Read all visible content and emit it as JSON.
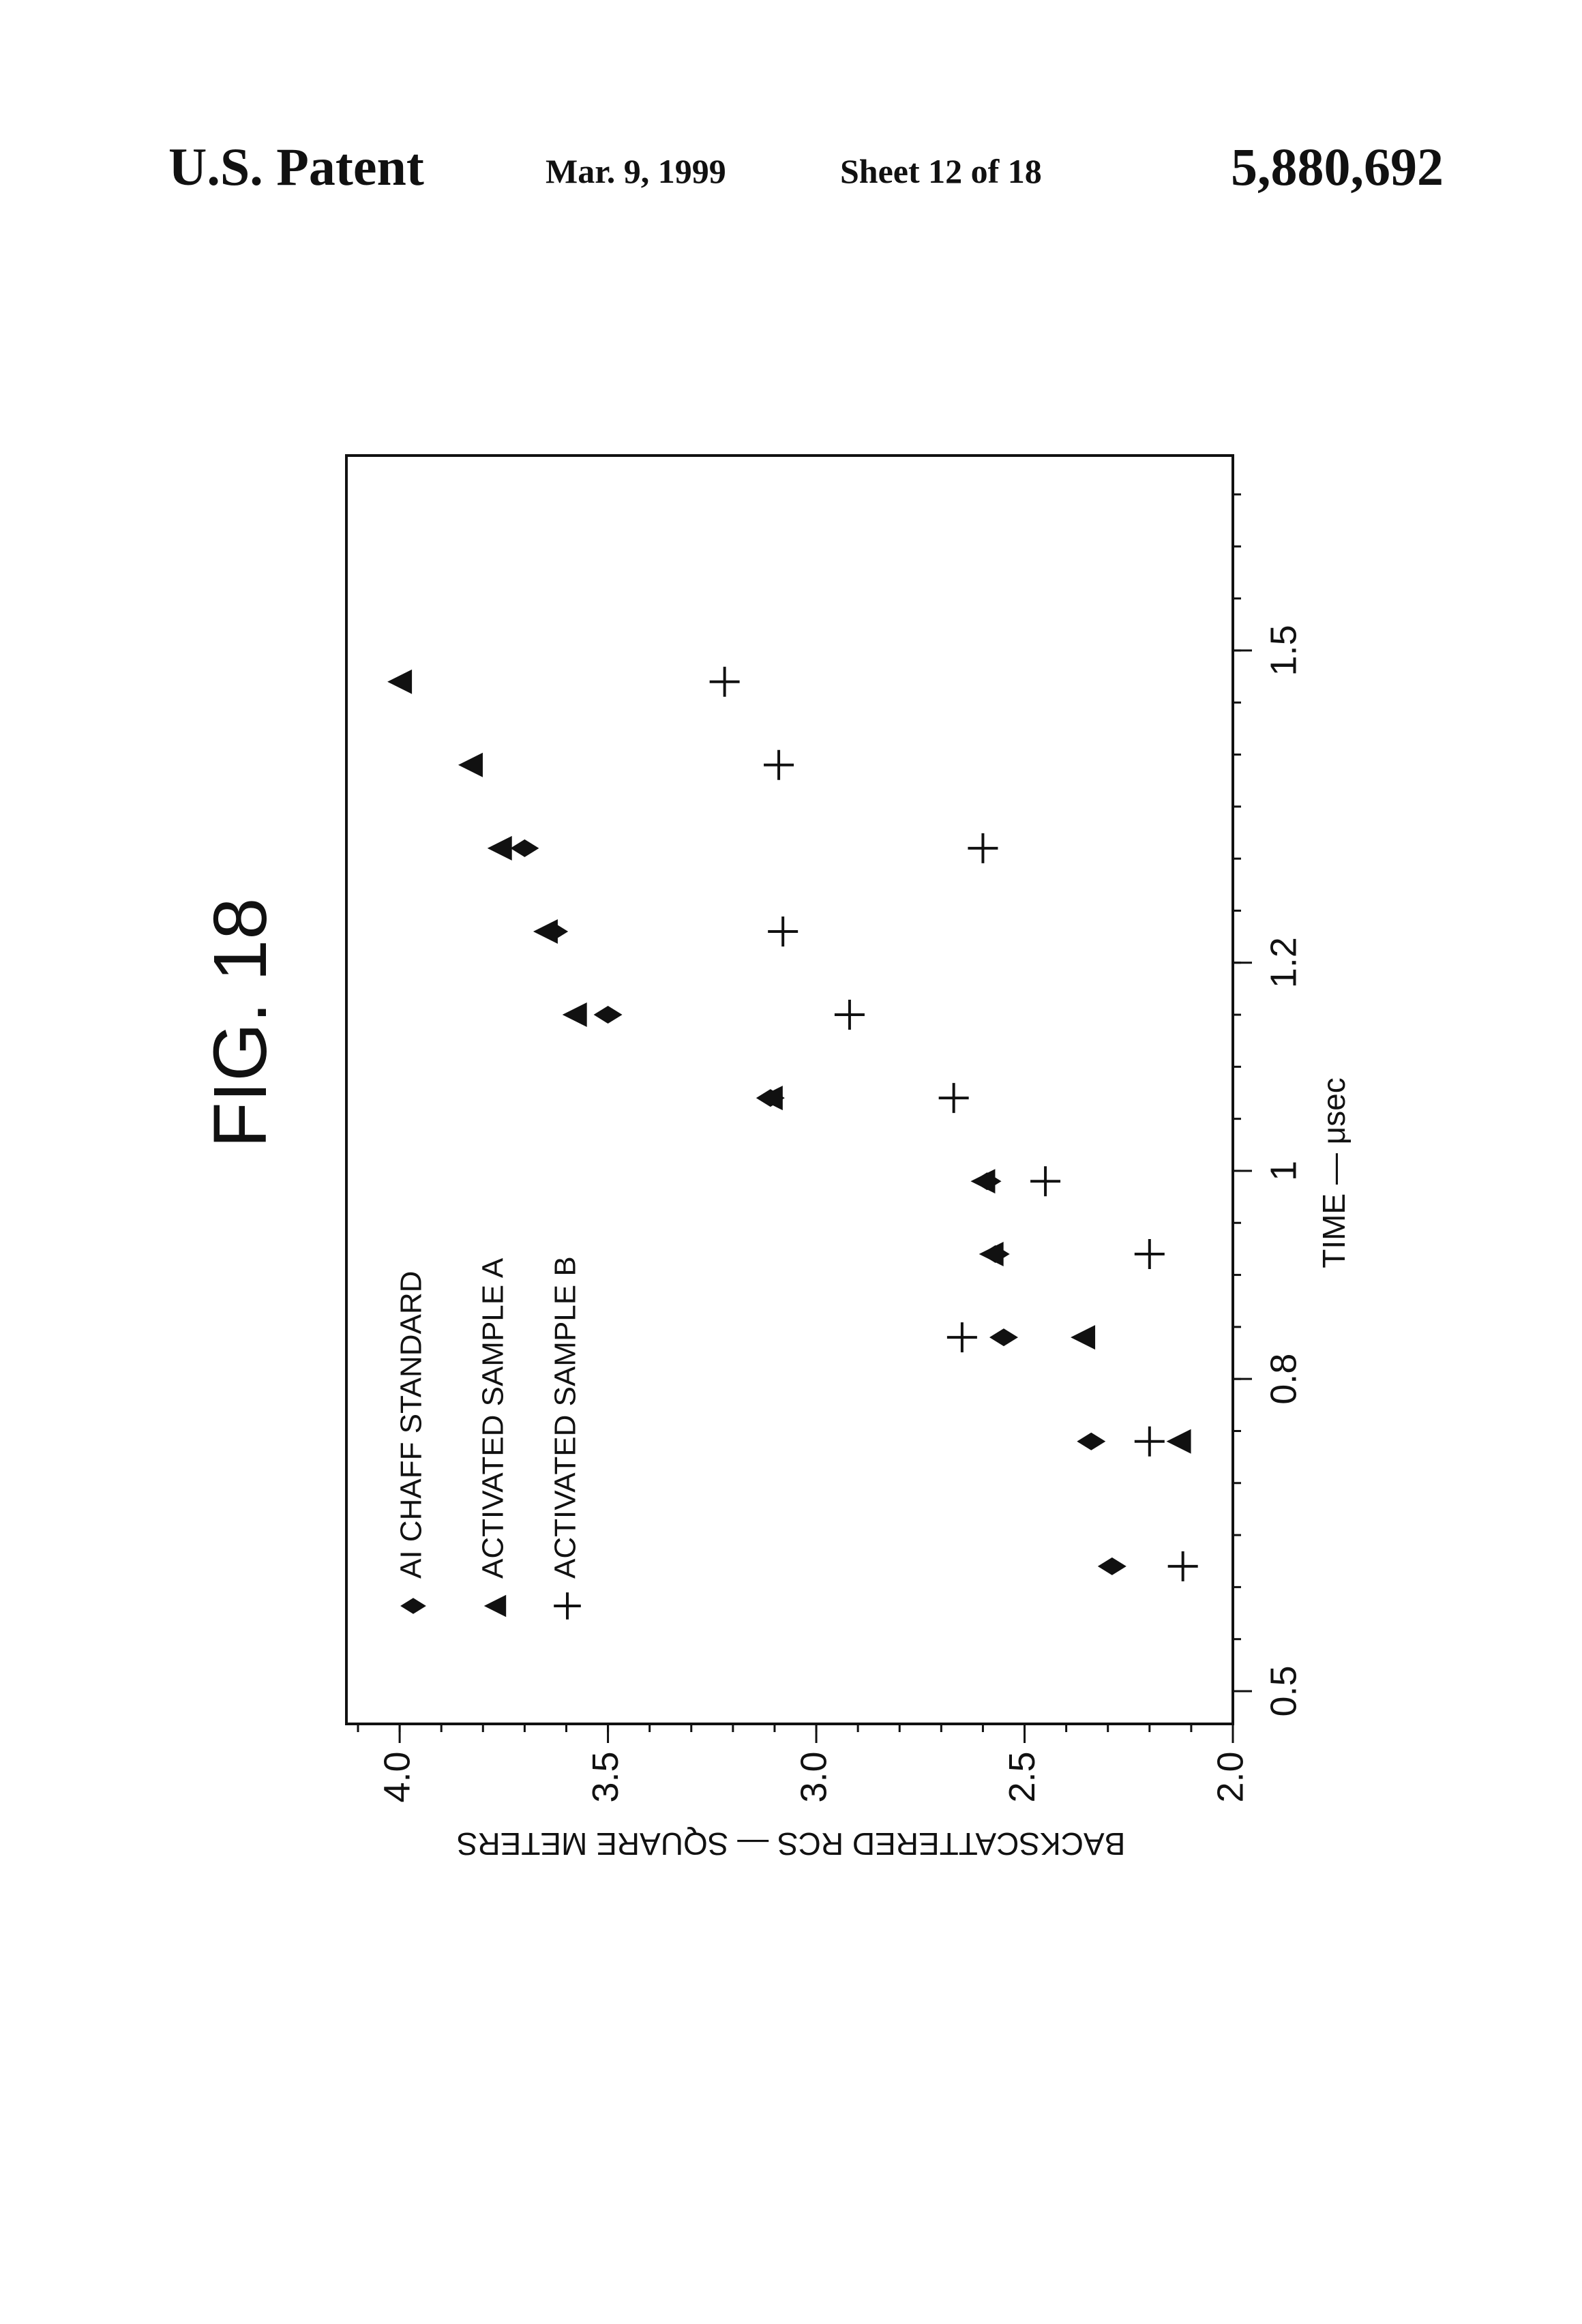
{
  "header": {
    "title": "U.S. Patent",
    "date": "Mar. 9, 1999",
    "sheet": "Sheet 12 of 18",
    "patent_number": "5,880,692"
  },
  "figure": {
    "label": "FIG. 18"
  },
  "chart_data": {
    "type": "scatter",
    "title": "",
    "xlabel": "TIME  —  μsec",
    "ylabel": "BACKSCATTERED RCS  —  SQUARE METERS",
    "xlim": [
      0.5,
      1.65
    ],
    "ylim": [
      2.0,
      4.1
    ],
    "x_ticks": [
      "0.5",
      "0.8",
      "1",
      "1.2",
      "1.5"
    ],
    "x_tick_values": [
      0.5,
      0.8,
      1.0,
      1.2,
      1.5
    ],
    "y_ticks": [
      "2.0",
      "2.5",
      "3.0",
      "3.5",
      "4.0"
    ],
    "y_tick_values": [
      2.0,
      2.5,
      3.0,
      3.5,
      4.0
    ],
    "grid": false,
    "orientation": "rotated 90° counter-clockwise on page",
    "legend_position": "top-left",
    "series": [
      {
        "name": "AI CHAFF STANDARD",
        "marker": "diamond",
        "x": [
          0.62,
          0.74,
          0.84,
          0.92,
          0.99,
          1.07,
          1.15,
          1.23,
          1.31
        ],
        "y": [
          2.29,
          2.34,
          2.55,
          2.57,
          2.59,
          3.11,
          3.5,
          3.63,
          3.7
        ]
      },
      {
        "name": "ACTIVATED SAMPLE A",
        "marker": "triangle",
        "x": [
          0.74,
          0.84,
          0.92,
          0.99,
          1.07,
          1.15,
          1.23,
          1.31,
          1.39,
          1.47
        ],
        "y": [
          2.13,
          2.36,
          2.58,
          2.6,
          3.11,
          3.58,
          3.65,
          3.76,
          3.83,
          4.0
        ]
      },
      {
        "name": "ACTIVATED SAMPLE B",
        "marker": "plus",
        "x": [
          0.62,
          0.74,
          0.84,
          0.92,
          0.99,
          1.07,
          1.15,
          1.23,
          1.31,
          1.39,
          1.47
        ],
        "y": [
          2.12,
          2.2,
          2.65,
          2.2,
          2.45,
          2.67,
          2.92,
          3.08,
          2.6,
          3.09,
          3.22
        ]
      }
    ]
  }
}
